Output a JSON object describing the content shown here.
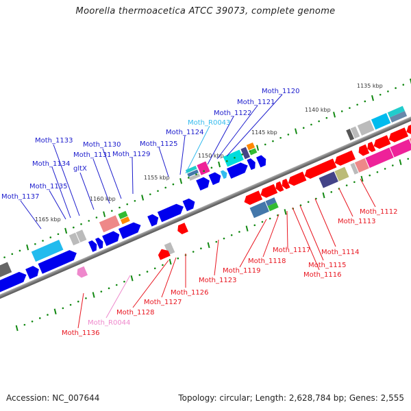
{
  "title": "Moorella thermoacetica ATCC 39073, complete genome",
  "footer": {
    "accession": "Accession: NC_007644",
    "summary": "Topology: circular; Length: 2,628,784 bp; Genes: 2,555"
  },
  "colors": {
    "forward_label": "#1a1acc",
    "reverse_label": "#e8141e",
    "rna_forward_label": "#33bbee",
    "rna_reverse_label": "#ee88cc",
    "tick": "#118811",
    "backbone": "#888888"
  },
  "kbp_ticks": [
    {
      "label": "1135 kbp"
    },
    {
      "label": "1140 kbp"
    },
    {
      "label": "1145 kbp"
    },
    {
      "label": "1150 kbp"
    },
    {
      "label": "1155 kbp"
    },
    {
      "label": "1160 kbp"
    },
    {
      "label": "1165 kbp"
    }
  ],
  "forward_genes": [
    {
      "label": "Moth_1120"
    },
    {
      "label": "Moth_1121"
    },
    {
      "label": "Moth_1122"
    },
    {
      "label": "Moth_R0043"
    },
    {
      "label": "Moth_1124"
    },
    {
      "label": "Moth_1125"
    },
    {
      "label": "Moth_1129"
    },
    {
      "label": "Moth_1130"
    },
    {
      "label": "Moth_1131"
    },
    {
      "label": "gltX"
    },
    {
      "label": "Moth_1133"
    },
    {
      "label": "Moth_1134"
    },
    {
      "label": "Moth_1135"
    },
    {
      "label": "Moth_1137"
    }
  ],
  "reverse_genes": [
    {
      "label": "Moth_1112"
    },
    {
      "label": "Moth_1113"
    },
    {
      "label": "Moth_1114"
    },
    {
      "label": "Moth_1115"
    },
    {
      "label": "Moth_1116"
    },
    {
      "label": "Moth_1117"
    },
    {
      "label": "Moth_1118"
    },
    {
      "label": "Moth_1119"
    },
    {
      "label": "Moth_1123"
    },
    {
      "label": "Moth_1126"
    },
    {
      "label": "Moth_1127"
    },
    {
      "label": "Moth_1128"
    },
    {
      "label": "Moth_R0044"
    },
    {
      "label": "Moth_1136"
    }
  ]
}
